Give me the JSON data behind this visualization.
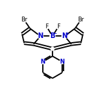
{
  "bg_color": "#ffffff",
  "bond_color": "#000000",
  "N_color": "#0000cc",
  "B_color": "#0000cc",
  "Br_color": "#000000",
  "F_color": "#000000",
  "line_width": 1.3,
  "dbo": 0.12,
  "font_size_atom": 7.0,
  "font_size_label": 6.0,
  "font_size_charge": 5.0,
  "figsize": [
    1.52,
    1.52
  ],
  "dpi": 100,
  "xlim": [
    0,
    10
  ],
  "ylim": [
    0,
    10
  ]
}
